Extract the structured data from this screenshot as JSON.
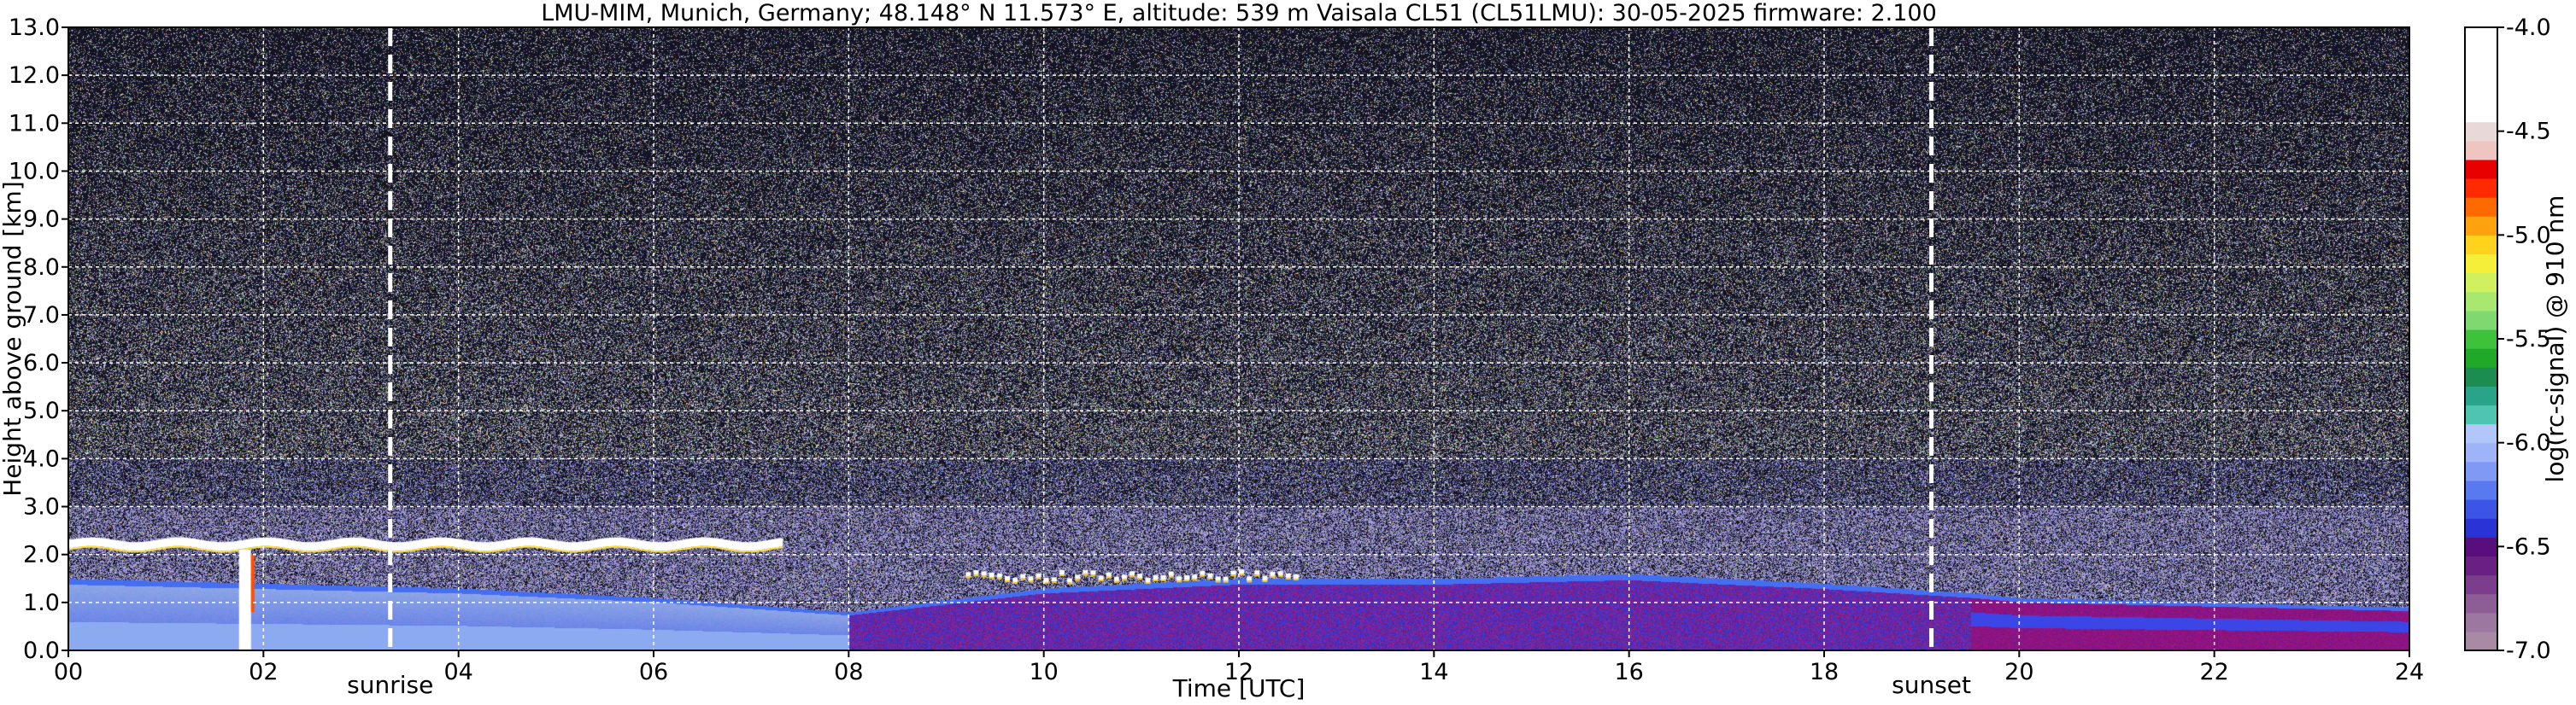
{
  "chart_data": {
    "type": "heatmap",
    "title": "LMU-MIM, Munich, Germany; 48.148° N 11.573° E, altitude: 539 m    Vaisala CL51 (CL51LMU): 30-05-2025    firmware: 2.100",
    "xlabel": "Time [UTC]",
    "ylabel": "Height above ground [km]",
    "xlim": [
      0,
      24
    ],
    "ylim": [
      0,
      13
    ],
    "x_ticks": [
      "00",
      "02",
      "04",
      "06",
      "08",
      "10",
      "12",
      "14",
      "16",
      "18",
      "20",
      "22",
      "24"
    ],
    "y_ticks": [
      "0.0",
      "1.0",
      "2.0",
      "3.0",
      "4.0",
      "5.0",
      "6.0",
      "7.0",
      "8.0",
      "9.0",
      "10.0",
      "11.0",
      "12.0",
      "13.0"
    ],
    "grid": true,
    "annotations": [
      {
        "label": "sunrise",
        "x": 3.3
      },
      {
        "label": "sunset",
        "x": 19.1
      }
    ],
    "colorbar": {
      "label": "log(rc-signal) @ 910 nm",
      "range": [
        -7.0,
        -4.0
      ],
      "ticks": [
        "-4.0",
        "-4.5",
        "-5.0",
        "-5.5",
        "-6.0",
        "-6.5",
        "-7.0"
      ],
      "colors": [
        "#a98aa4",
        "#9c77a0",
        "#8d5d95",
        "#7b3d8c",
        "#6a1f83",
        "#5a0d7d",
        "#2a34d6",
        "#3c55e6",
        "#5a78f0",
        "#7f99f5",
        "#9fb3f8",
        "#b3c6fa",
        "#4fc4b0",
        "#2aa38b",
        "#1c8c50",
        "#20a828",
        "#3fc23b",
        "#7fd870",
        "#a9e86f",
        "#d0f060",
        "#f6ef3a",
        "#ffd21e",
        "#ffa20f",
        "#ff6a00",
        "#ff2a00",
        "#e80000",
        "#f0c4c0",
        "#e8d8d8",
        "#ffffff",
        "#ffffff",
        "#ffffff",
        "#ffffff",
        "#ffffff"
      ]
    },
    "features": [
      {
        "kind": "cloud_layer",
        "x": [
          0.0,
          7.3
        ],
        "y_km": 2.2
      },
      {
        "kind": "cloud_fragments",
        "x": [
          9.2,
          12.6
        ],
        "y_km": 1.7
      },
      {
        "kind": "boundary_layer_top",
        "x": [
          0,
          2,
          4,
          6,
          8,
          10,
          12,
          14,
          16,
          18,
          19.5,
          20,
          22,
          24
        ],
        "y_km": [
          1.5,
          1.4,
          1.3,
          1.1,
          0.8,
          1.3,
          1.5,
          1.5,
          1.6,
          1.4,
          1.2,
          1.1,
          1.0,
          0.9
        ]
      }
    ]
  }
}
